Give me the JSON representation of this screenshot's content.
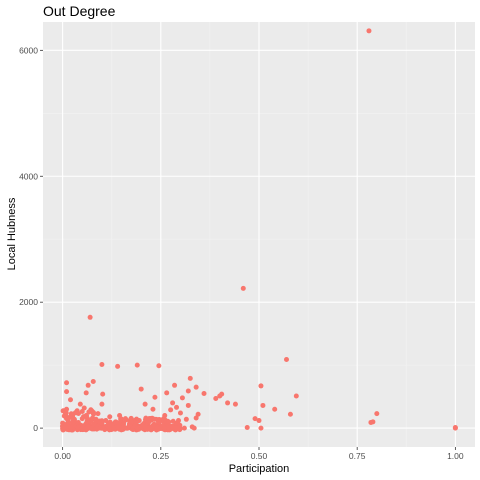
{
  "chart_data": {
    "type": "scatter",
    "title": "Out Degree",
    "xlabel": "Participation",
    "ylabel": "Local Hubness",
    "xlim": [
      -0.05,
      1.05
    ],
    "ylim": [
      -300,
      6450
    ],
    "x_ticks": [
      0,
      0.25,
      0.5,
      0.75,
      1.0
    ],
    "x_tick_labels": [
      "0.00",
      "0.25",
      "0.50",
      "0.75",
      "1.00"
    ],
    "y_ticks": [
      0,
      2000,
      4000,
      6000
    ],
    "y_tick_labels": [
      "0",
      "2000",
      "4000",
      "6000"
    ],
    "grid": true,
    "legend": "none",
    "colors": {
      "point": "#F8766D",
      "panel": "#EBEBEB",
      "grid_major": "#FFFFFF",
      "grid_minor": "#F2F2F2"
    },
    "points": [
      [
        0.0,
        0
      ],
      [
        0.0,
        30
      ],
      [
        0.0,
        80
      ],
      [
        0.005,
        10
      ],
      [
        0.01,
        50
      ],
      [
        0.01,
        150
      ],
      [
        0.01,
        300
      ],
      [
        0.01,
        580
      ],
      [
        0.01,
        720
      ],
      [
        0.015,
        0
      ],
      [
        0.015,
        100
      ],
      [
        0.02,
        20
      ],
      [
        0.02,
        180
      ],
      [
        0.02,
        450
      ],
      [
        0.025,
        60
      ],
      [
        0.03,
        0
      ],
      [
        0.03,
        120
      ],
      [
        0.035,
        30
      ],
      [
        0.035,
        250
      ],
      [
        0.04,
        10
      ],
      [
        0.04,
        90
      ],
      [
        0.045,
        380
      ],
      [
        0.05,
        0
      ],
      [
        0.05,
        150
      ],
      [
        0.055,
        40
      ],
      [
        0.055,
        320
      ],
      [
        0.06,
        0
      ],
      [
        0.06,
        200
      ],
      [
        0.06,
        560
      ],
      [
        0.065,
        680
      ],
      [
        0.065,
        20
      ],
      [
        0.07,
        100
      ],
      [
        0.07,
        1760
      ],
      [
        0.072,
        0
      ],
      [
        0.075,
        270
      ],
      [
        0.078,
        740
      ],
      [
        0.08,
        50
      ],
      [
        0.085,
        0
      ],
      [
        0.085,
        140
      ],
      [
        0.09,
        30
      ],
      [
        0.09,
        230
      ],
      [
        0.095,
        0
      ],
      [
        0.1,
        80
      ],
      [
        0.1,
        380
      ],
      [
        0.1,
        1010
      ],
      [
        0.102,
        540
      ],
      [
        0.105,
        0
      ],
      [
        0.11,
        120
      ],
      [
        0.115,
        30
      ],
      [
        0.12,
        0
      ],
      [
        0.12,
        180
      ],
      [
        0.125,
        60
      ],
      [
        0.13,
        0
      ],
      [
        0.135,
        100
      ],
      [
        0.14,
        980
      ],
      [
        0.14,
        20
      ],
      [
        0.145,
        200
      ],
      [
        0.15,
        0
      ],
      [
        0.155,
        60
      ],
      [
        0.16,
        150
      ],
      [
        0.165,
        0
      ],
      [
        0.17,
        40
      ],
      [
        0.175,
        100
      ],
      [
        0.18,
        0
      ],
      [
        0.185,
        30
      ],
      [
        0.19,
        1000
      ],
      [
        0.19,
        0
      ],
      [
        0.195,
        120
      ],
      [
        0.2,
        620
      ],
      [
        0.2,
        0
      ],
      [
        0.205,
        60
      ],
      [
        0.21,
        380
      ],
      [
        0.21,
        20
      ],
      [
        0.215,
        0
      ],
      [
        0.22,
        150
      ],
      [
        0.225,
        0
      ],
      [
        0.23,
        300
      ],
      [
        0.23,
        40
      ],
      [
        0.235,
        490
      ],
      [
        0.24,
        0
      ],
      [
        0.245,
        990
      ],
      [
        0.245,
        100
      ],
      [
        0.25,
        0
      ],
      [
        0.255,
        30
      ],
      [
        0.26,
        200
      ],
      [
        0.26,
        0
      ],
      [
        0.265,
        560
      ],
      [
        0.27,
        0
      ],
      [
        0.27,
        100
      ],
      [
        0.275,
        290
      ],
      [
        0.28,
        400
      ],
      [
        0.28,
        20
      ],
      [
        0.285,
        0
      ],
      [
        0.285,
        680
      ],
      [
        0.29,
        330
      ],
      [
        0.29,
        0
      ],
      [
        0.295,
        120
      ],
      [
        0.3,
        240
      ],
      [
        0.305,
        480
      ],
      [
        0.31,
        0
      ],
      [
        0.315,
        140
      ],
      [
        0.32,
        590
      ],
      [
        0.32,
        360
      ],
      [
        0.325,
        790
      ],
      [
        0.33,
        20
      ],
      [
        0.335,
        0
      ],
      [
        0.34,
        160
      ],
      [
        0.34,
        650
      ],
      [
        0.345,
        220
      ],
      [
        0.36,
        550
      ],
      [
        0.39,
        470
      ],
      [
        0.4,
        510
      ],
      [
        0.405,
        540
      ],
      [
        0.42,
        400
      ],
      [
        0.44,
        380
      ],
      [
        0.46,
        2220
      ],
      [
        0.47,
        10
      ],
      [
        0.49,
        150
      ],
      [
        0.5,
        120
      ],
      [
        0.505,
        670
      ],
      [
        0.505,
        0
      ],
      [
        0.51,
        360
      ],
      [
        0.54,
        300
      ],
      [
        0.57,
        1090
      ],
      [
        0.58,
        220
      ],
      [
        0.595,
        510
      ],
      [
        0.78,
        6310
      ],
      [
        0.785,
        90
      ],
      [
        0.79,
        100
      ],
      [
        0.8,
        230
      ],
      [
        1.0,
        0
      ],
      [
        1.0,
        10
      ]
    ],
    "dense_bands": [
      {
        "x": [
          0.0,
          0.3
        ],
        "y": [
          -30,
          40
        ],
        "count": 220
      },
      {
        "x": [
          0.0,
          0.3
        ],
        "y": [
          40,
          160
        ],
        "count": 80
      },
      {
        "x": [
          0.0,
          0.08
        ],
        "y": [
          150,
          300
        ],
        "count": 25
      }
    ]
  }
}
